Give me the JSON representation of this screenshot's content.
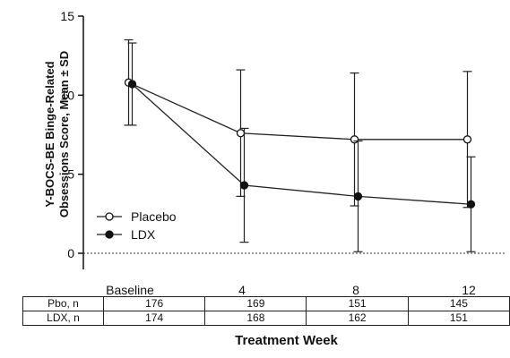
{
  "chart_data": {
    "type": "line",
    "categories": [
      "Baseline",
      "4",
      "8",
      "12"
    ],
    "ylim": [
      0,
      15
    ],
    "yticks": [
      0,
      5,
      10,
      15
    ],
    "ylabel_line1": "Y-BOCS-BE Binge-Related",
    "ylabel_line2": "Obsessions Score, Mean ± SD",
    "xlabel": "Treatment Week",
    "legend_position": "lower-left",
    "reference_line": 0,
    "series": [
      {
        "name": "Placebo",
        "marker": "open-circle",
        "values": [
          10.8,
          7.6,
          7.2,
          7.2
        ],
        "sd": [
          2.7,
          4.0,
          4.2,
          4.3
        ]
      },
      {
        "name": "LDX",
        "marker": "filled-circle",
        "values": [
          10.7,
          4.3,
          3.6,
          3.1
        ],
        "sd": [
          2.6,
          3.6,
          3.5,
          3.0
        ]
      }
    ],
    "table": {
      "rows": [
        {
          "label": "Pbo, n",
          "values": [
            "176",
            "169",
            "151",
            "145"
          ]
        },
        {
          "label": "LDX, n",
          "values": [
            "174",
            "168",
            "162",
            "151"
          ]
        }
      ]
    }
  }
}
